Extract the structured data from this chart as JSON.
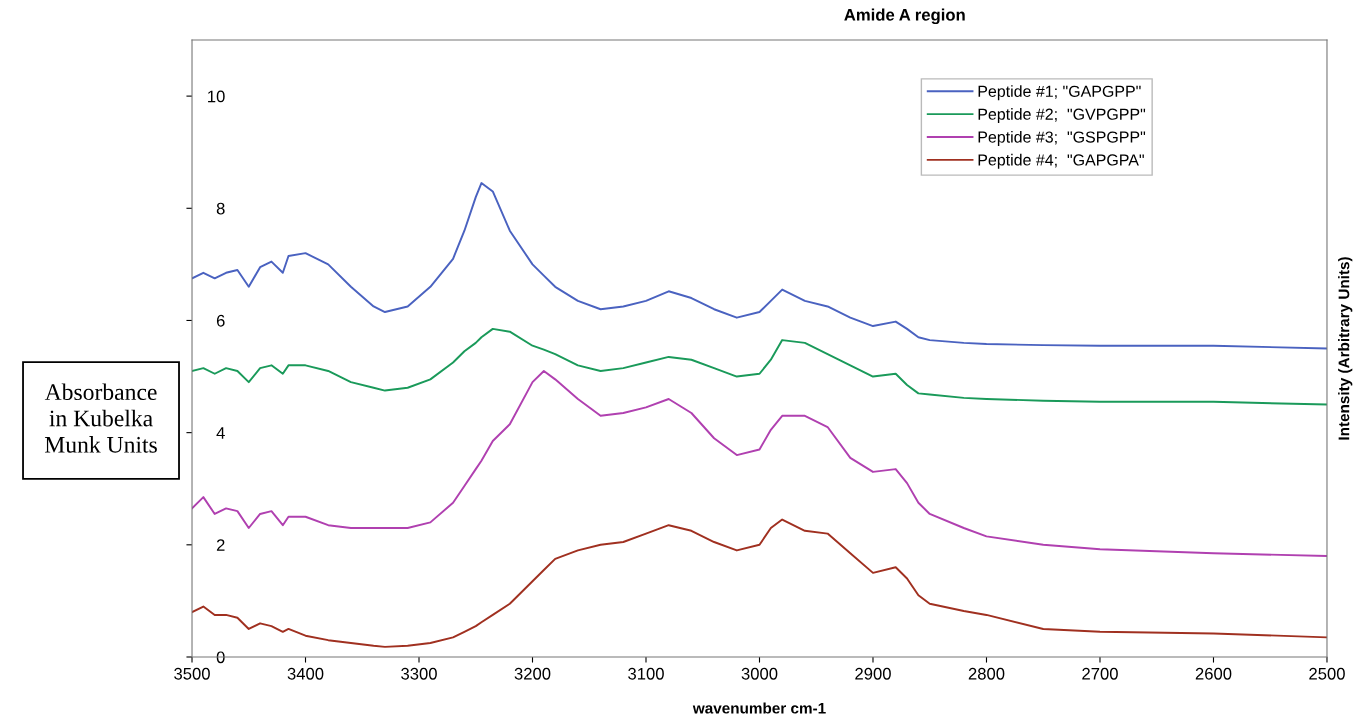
{
  "chart_data": {
    "type": "line",
    "title": "Amide A region",
    "xlabel": "wavenumber cm-1",
    "ylabel": "Intensity (Arbitrary Units)",
    "annotations": [
      "Absorbance\nin Kubelka\nMunk Units"
    ],
    "x": [
      3500,
      3490,
      3480,
      3470,
      3460,
      3450,
      3440,
      3430,
      3420,
      3415,
      3400,
      3380,
      3360,
      3340,
      3330,
      3310,
      3290,
      3270,
      3260,
      3250,
      3245,
      3235,
      3220,
      3200,
      3190,
      3180,
      3160,
      3140,
      3120,
      3100,
      3080,
      3060,
      3040,
      3020,
      3000,
      2990,
      2980,
      2960,
      2940,
      2920,
      2900,
      2880,
      2870,
      2860,
      2850,
      2820,
      2800,
      2750,
      2700,
      2600,
      2500
    ],
    "series": [
      {
        "name": "Peptide #1; \"GAPGPP\"",
        "color": "#4a62c0",
        "values": [
          6.75,
          6.85,
          6.75,
          6.85,
          6.9,
          6.6,
          6.95,
          7.05,
          6.85,
          7.15,
          7.2,
          7.0,
          6.6,
          6.25,
          6.15,
          6.25,
          6.6,
          7.1,
          7.6,
          8.2,
          8.45,
          8.3,
          7.6,
          7.0,
          6.8,
          6.6,
          6.35,
          6.2,
          6.25,
          6.35,
          6.52,
          6.4,
          6.2,
          6.05,
          6.15,
          6.35,
          6.55,
          6.35,
          6.25,
          6.05,
          5.9,
          5.98,
          5.85,
          5.7,
          5.65,
          5.6,
          5.58,
          5.56,
          5.55,
          5.55,
          5.5
        ]
      },
      {
        "name": "Peptide #2;  \"GVPGPP\"",
        "color": "#1a9a5a",
        "values": [
          5.1,
          5.15,
          5.05,
          5.15,
          5.1,
          4.9,
          5.15,
          5.2,
          5.05,
          5.2,
          5.2,
          5.1,
          4.9,
          4.8,
          4.75,
          4.8,
          4.95,
          5.25,
          5.45,
          5.6,
          5.7,
          5.85,
          5.8,
          5.55,
          5.48,
          5.4,
          5.2,
          5.1,
          5.15,
          5.25,
          5.35,
          5.3,
          5.15,
          5.0,
          5.05,
          5.3,
          5.65,
          5.6,
          5.4,
          5.2,
          5.0,
          5.05,
          4.85,
          4.7,
          4.68,
          4.62,
          4.6,
          4.57,
          4.55,
          4.55,
          4.5
        ]
      },
      {
        "name": "Peptide #3;  \"GSPGPP\"",
        "color": "#b040b0",
        "values": [
          2.65,
          2.85,
          2.55,
          2.65,
          2.6,
          2.3,
          2.55,
          2.6,
          2.35,
          2.5,
          2.5,
          2.35,
          2.3,
          2.3,
          2.3,
          2.3,
          2.4,
          2.75,
          3.05,
          3.35,
          3.5,
          3.85,
          4.15,
          4.9,
          5.1,
          4.95,
          4.6,
          4.3,
          4.35,
          4.45,
          4.6,
          4.35,
          3.9,
          3.6,
          3.7,
          4.05,
          4.3,
          4.3,
          4.1,
          3.55,
          3.3,
          3.35,
          3.1,
          2.75,
          2.55,
          2.3,
          2.15,
          2.0,
          1.92,
          1.85,
          1.8
        ]
      },
      {
        "name": "Peptide #4;  \"GAPGPA\"",
        "color": "#a03020",
        "values": [
          0.8,
          0.9,
          0.75,
          0.75,
          0.7,
          0.5,
          0.6,
          0.55,
          0.45,
          0.5,
          0.38,
          0.3,
          0.25,
          0.2,
          0.18,
          0.2,
          0.25,
          0.35,
          0.45,
          0.55,
          0.62,
          0.75,
          0.95,
          1.35,
          1.55,
          1.75,
          1.9,
          2.0,
          2.05,
          2.2,
          2.35,
          2.25,
          2.05,
          1.9,
          2.0,
          2.3,
          2.45,
          2.25,
          2.2,
          1.85,
          1.5,
          1.6,
          1.4,
          1.1,
          0.95,
          0.82,
          0.75,
          0.5,
          0.45,
          0.42,
          0.35
        ]
      }
    ],
    "xlim": [
      3500,
      2500
    ],
    "xticks": [
      3500,
      3400,
      3300,
      3200,
      3100,
      3000,
      2900,
      2800,
      2700,
      2600,
      2500
    ],
    "ylim": [
      0,
      11
    ],
    "yticks": [
      0,
      2,
      4,
      6,
      8,
      10
    ],
    "grid": false,
    "legend": "top right",
    "marker": "none",
    "line_style": "solid"
  }
}
